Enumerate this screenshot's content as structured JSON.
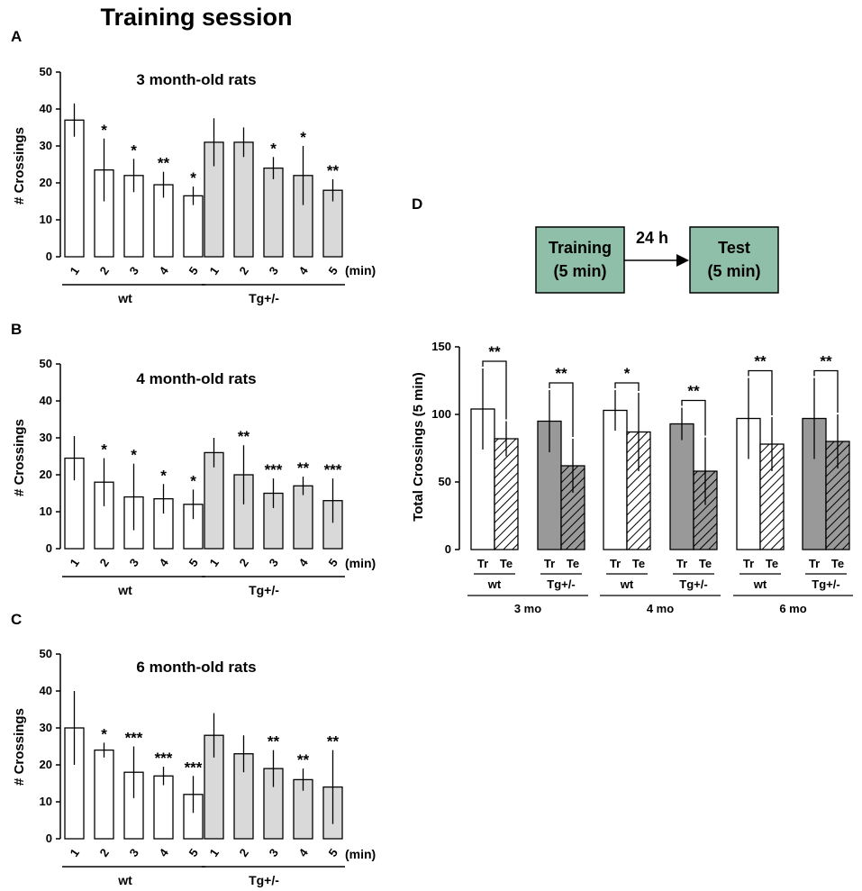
{
  "figure_title": "Training session",
  "colors": {
    "wt": "#ffffff",
    "tg": "#d9d9d9",
    "tg_dark": "#999999",
    "box": "#8fbfa8",
    "stroke": "#000000"
  },
  "diagram": {
    "training_label": "Training",
    "training_sub": "(5 min)",
    "interval": "24 h",
    "test_label": "Test",
    "test_sub": "(5 min)"
  },
  "chart_data": [
    {
      "panel": "A",
      "type": "bar",
      "title": "3 month-old rats",
      "ylabel": "# Crossings",
      "xunit": "(min)",
      "ylim": [
        0,
        50
      ],
      "yticks": [
        0,
        10,
        20,
        30,
        40,
        50
      ],
      "groups": [
        {
          "name": "wt",
          "categories": [
            "1",
            "2",
            "3",
            "4",
            "5"
          ],
          "values": [
            37,
            23.5,
            22,
            19.5,
            16.5
          ],
          "errors": [
            4.5,
            8.5,
            4.5,
            3.5,
            2.5
          ],
          "stars": [
            "",
            "*",
            "*",
            "**",
            "*"
          ]
        },
        {
          "name": "Tg+/-",
          "categories": [
            "1",
            "2",
            "3",
            "4",
            "5"
          ],
          "values": [
            31,
            31,
            24,
            22,
            18
          ],
          "errors": [
            6.5,
            4,
            3,
            8,
            3
          ],
          "stars": [
            "",
            "",
            "*",
            "*",
            "**"
          ]
        }
      ]
    },
    {
      "panel": "B",
      "type": "bar",
      "title": "4 month-old rats",
      "ylabel": "# Crossings",
      "xunit": "(min)",
      "ylim": [
        0,
        50
      ],
      "yticks": [
        0,
        10,
        20,
        30,
        40,
        50
      ],
      "groups": [
        {
          "name": "wt",
          "categories": [
            "1",
            "2",
            "3",
            "4",
            "5"
          ],
          "values": [
            24.5,
            18,
            14,
            13.5,
            12
          ],
          "errors": [
            6,
            6.5,
            9,
            4,
            4
          ],
          "stars": [
            "",
            "*",
            "*",
            "*",
            "*"
          ]
        },
        {
          "name": "Tg+/-",
          "categories": [
            "1",
            "2",
            "3",
            "4",
            "5"
          ],
          "values": [
            26,
            20,
            15,
            17,
            13
          ],
          "errors": [
            4,
            8,
            4,
            2.5,
            6
          ],
          "stars": [
            "",
            "**",
            "***",
            "**",
            "***"
          ]
        }
      ]
    },
    {
      "panel": "C",
      "type": "bar",
      "title": "6 month-old rats",
      "ylabel": "# Crossings",
      "xunit": "(min)",
      "ylim": [
        0,
        50
      ],
      "yticks": [
        0,
        10,
        20,
        30,
        40,
        50
      ],
      "groups": [
        {
          "name": "wt",
          "categories": [
            "1",
            "2",
            "3",
            "4",
            "5"
          ],
          "values": [
            30,
            24,
            18,
            17,
            12
          ],
          "errors": [
            10,
            2,
            7,
            2.5,
            5
          ],
          "stars": [
            "",
            "*",
            "***",
            "***",
            "***"
          ]
        },
        {
          "name": "Tg+/-",
          "categories": [
            "1",
            "2",
            "3",
            "4",
            "5"
          ],
          "values": [
            28,
            23,
            19,
            16,
            14
          ],
          "errors": [
            6,
            5,
            5,
            3,
            10
          ],
          "stars": [
            "",
            "",
            "**",
            "**",
            "**"
          ]
        }
      ]
    },
    {
      "panel": "D",
      "type": "bar",
      "ylabel": "Total Crossings  (5 min)",
      "ylim": [
        0,
        150
      ],
      "yticks": [
        0,
        50,
        100,
        150
      ],
      "pair_labels": [
        "Tr",
        "Te"
      ],
      "ages": [
        {
          "age": "3 mo",
          "pairs": [
            {
              "genotype": "wt",
              "tr": 104,
              "tr_err": 30,
              "te": 82,
              "te_err": 13,
              "stars": "**"
            },
            {
              "genotype": "Tg+/-",
              "tr": 95,
              "tr_err": 23,
              "te": 62,
              "te_err": 20,
              "stars": "**"
            }
          ]
        },
        {
          "age": "4 mo",
          "pairs": [
            {
              "genotype": "wt",
              "tr": 103,
              "tr_err": 15,
              "te": 87,
              "te_err": 29,
              "stars": "*"
            },
            {
              "genotype": "Tg+/-",
              "tr": 93,
              "tr_err": 12,
              "te": 58,
              "te_err": 25,
              "stars": "**"
            }
          ]
        },
        {
          "age": "6 mo",
          "pairs": [
            {
              "genotype": "wt",
              "tr": 97,
              "tr_err": 30,
              "te": 78,
              "te_err": 20,
              "stars": "**"
            },
            {
              "genotype": "Tg+/-",
              "tr": 97,
              "tr_err": 30,
              "te": 80,
              "te_err": 20,
              "stars": "**"
            }
          ]
        }
      ]
    }
  ]
}
